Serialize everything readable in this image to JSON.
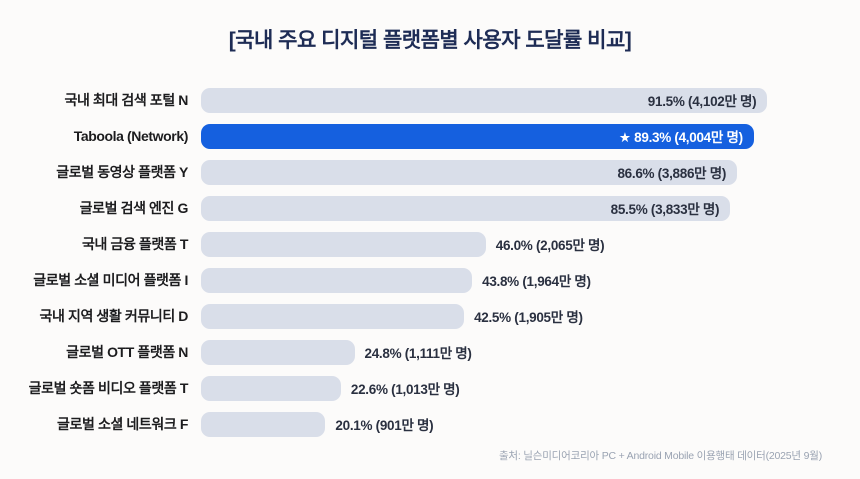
{
  "title": "[국내 주요 디지털 플랫폼별 사용자 도달률 비교]",
  "footer": {
    "source": "출처: 닐슨미디어코리아 PC + Android Mobile 이용행태 데이터(2025년 9월)"
  },
  "colors": {
    "accent": "#1560df",
    "bar": "#d9dee9",
    "title": "#1e2c55",
    "value_text": "#2a3040",
    "highlight_value_text": "#ffffff",
    "source_text": "#9aa3b2",
    "background": "#fcfbfa"
  },
  "chart_data": {
    "type": "bar",
    "orientation": "horizontal",
    "title": "[국내 주요 디지털 플랫폼별 사용자 도달률 비교]",
    "xlabel": "",
    "ylabel": "",
    "xlim": [
      0,
      100
    ],
    "unit": "%",
    "grid": false,
    "legend": null,
    "highlight_index": 1,
    "highlight_marker": "★",
    "categories": [
      "국내 최대 검색 포털 N",
      "Taboola (Network)",
      "글로벌 동영상 플랫폼 Y",
      "글로벌 검색 엔진 G",
      "국내 금융 플랫폼 T",
      "글로벌 소셜 미디어 플랫폼 I",
      "국내 지역 생활 커뮤니티 D",
      "글로벌 OTT 플랫폼 N",
      "글로벌 숏폼 비디오 플랫폼 T",
      "글로벌 소셜 네트워크 F"
    ],
    "values": [
      91.5,
      89.3,
      86.6,
      85.5,
      46.0,
      43.8,
      42.5,
      24.8,
      22.6,
      20.1
    ],
    "users_10k": [
      4102,
      4004,
      3886,
      3833,
      2065,
      1964,
      1905,
      1111,
      1013,
      901
    ],
    "value_labels": [
      "91.5% (4,102만 명)",
      "★ 89.3% (4,004만 명)",
      "86.6% (3,886만 명)",
      "85.5% (3,833만 명)",
      "46.0% (2,065만 명)",
      "43.8% (1,964만 명)",
      "42.5% (1,905만 명)",
      "24.8% (1,111만 명)",
      "22.6% (1,013만 명)",
      "20.1% (901만 명)"
    ]
  }
}
